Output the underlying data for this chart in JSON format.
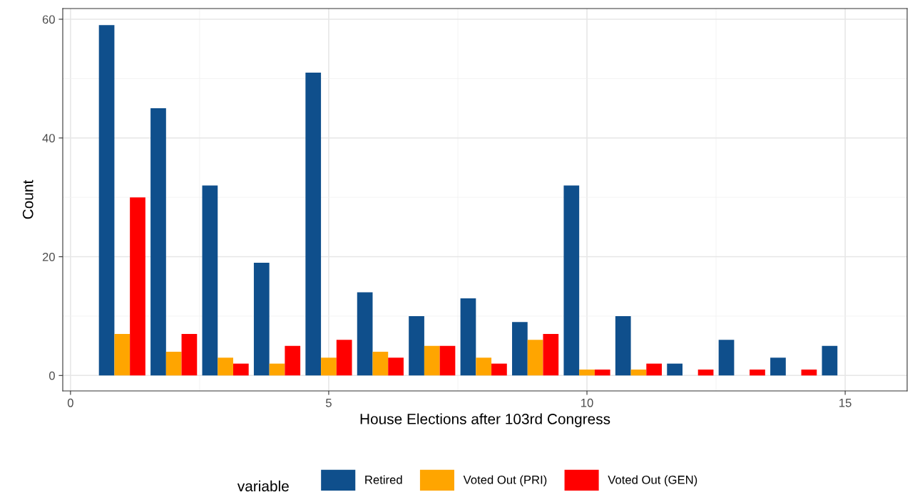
{
  "chart_data": {
    "type": "bar",
    "xlabel": "House Elections after 103rd Congress",
    "ylabel": "Count",
    "legend_title": "variable",
    "x": [
      1,
      2,
      3,
      4,
      5,
      6,
      7,
      8,
      9,
      10,
      11,
      12,
      13,
      14,
      15
    ],
    "series": [
      {
        "name": "Retired",
        "color": "#0f4f8c",
        "values": [
          59,
          45,
          32,
          19,
          51,
          14,
          10,
          13,
          9,
          32,
          10,
          2,
          6,
          3,
          5
        ]
      },
      {
        "name": "Voted Out (PRI)",
        "color": "#ffa500",
        "values": [
          7,
          4,
          3,
          2,
          3,
          4,
          5,
          3,
          6,
          1,
          1,
          null,
          null,
          null,
          null
        ]
      },
      {
        "name": "Voted Out (GEN)",
        "color": "#ff0000",
        "values": [
          30,
          7,
          2,
          5,
          6,
          3,
          5,
          2,
          7,
          1,
          2,
          1,
          1,
          1,
          null
        ]
      }
    ],
    "xlim": [
      -0.15,
      16.2
    ],
    "xticks": [
      0,
      5,
      10,
      15
    ],
    "ylim": [
      -2.6,
      61.8
    ],
    "yticks": [
      0,
      20,
      40,
      60
    ],
    "grid": true,
    "legend": "bottom"
  }
}
